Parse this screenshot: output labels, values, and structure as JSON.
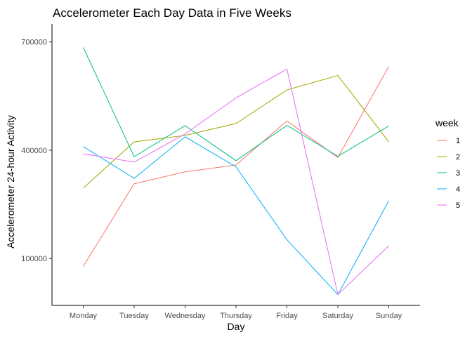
{
  "chart_data": {
    "type": "line",
    "title": "Accelerometer Each Day Data in Five Weeks",
    "xlabel": "Day",
    "ylabel": "Accelerometer 24-hour Activity",
    "categories": [
      "Monday",
      "Tuesday",
      "Wednesday",
      "Thursday",
      "Friday",
      "Saturday",
      "Sunday"
    ],
    "y_ticks": [
      100000,
      400000,
      700000
    ],
    "y_tick_labels": [
      "100000",
      "400000",
      "700000"
    ],
    "ylim": [
      -30000,
      750000
    ],
    "grid": false,
    "legend": {
      "title": "week",
      "position": "right"
    },
    "series": [
      {
        "name": "1",
        "color": "#F8766D",
        "values": [
          78000,
          307000,
          340000,
          359000,
          481000,
          380000,
          632000
        ]
      },
      {
        "name": "2",
        "color": "#A3A500",
        "values": [
          295000,
          423000,
          441000,
          474000,
          567000,
          607000,
          423000
        ]
      },
      {
        "name": "3",
        "color": "#00BF7D",
        "values": [
          685000,
          382000,
          468000,
          371000,
          469000,
          383000,
          467000
        ]
      },
      {
        "name": "4",
        "color": "#00B0F6",
        "values": [
          410000,
          322000,
          437000,
          354000,
          152000,
          0,
          260000
        ]
      },
      {
        "name": "5",
        "color": "#E76BF3",
        "values": [
          390000,
          367000,
          445000,
          545000,
          625000,
          0,
          135000
        ]
      }
    ]
  }
}
